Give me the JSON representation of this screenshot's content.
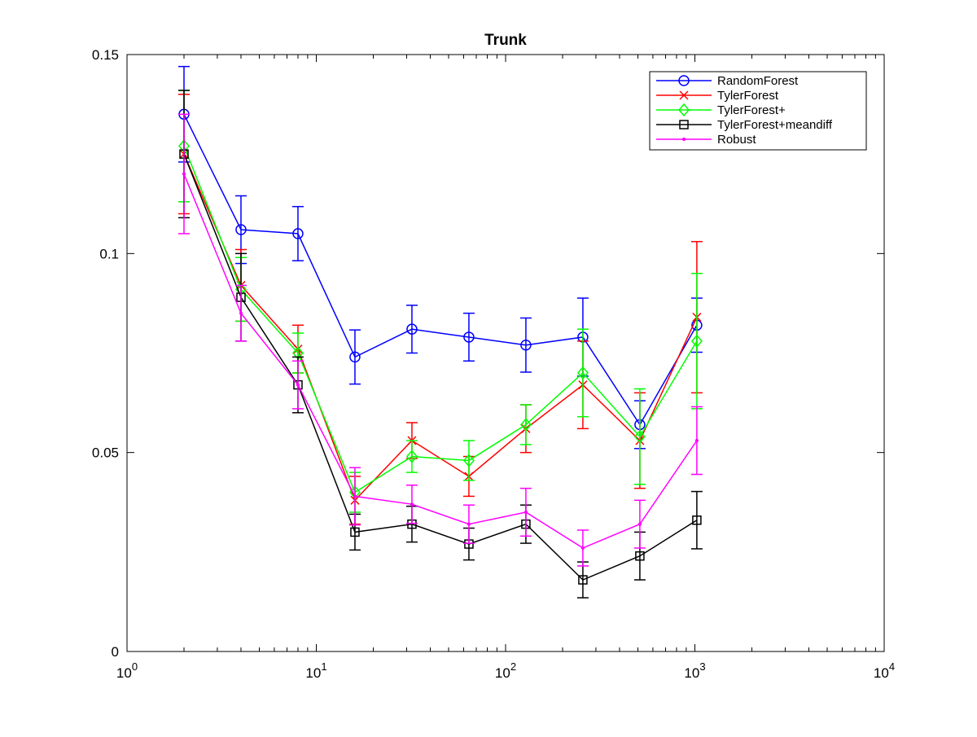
{
  "chart_data": {
    "type": "line",
    "title": "Trunk",
    "xlabel": "",
    "ylabel": "",
    "xscale": "log",
    "xlim": [
      1,
      10000
    ],
    "ylim": [
      0,
      0.15
    ],
    "x_ticks": [
      {
        "value": 1,
        "base": "10",
        "exp": "0"
      },
      {
        "value": 10,
        "base": "10",
        "exp": "1"
      },
      {
        "value": 100,
        "base": "10",
        "exp": "2"
      },
      {
        "value": 1000,
        "base": "10",
        "exp": "3"
      },
      {
        "value": 10000,
        "base": "10",
        "exp": "4"
      }
    ],
    "y_ticks": [
      {
        "value": 0,
        "label": "0"
      },
      {
        "value": 0.05,
        "label": "0.05"
      },
      {
        "value": 0.1,
        "label": "0.1"
      },
      {
        "value": 0.15,
        "label": "0.15"
      }
    ],
    "grid": false,
    "legend_position": "top-right",
    "x": [
      2,
      4,
      8,
      16,
      32,
      64,
      128,
      256,
      512,
      1024
    ],
    "series": [
      {
        "name": "RandomForest",
        "color": "#0000ff",
        "marker": "circle",
        "values": [
          0.135,
          0.106,
          0.105,
          0.074,
          0.081,
          0.079,
          0.077,
          0.079,
          0.057,
          0.082
        ],
        "errors": [
          0.012,
          0.0085,
          0.0068,
          0.0068,
          0.006,
          0.006,
          0.0068,
          0.0098,
          0.006,
          0.0068
        ]
      },
      {
        "name": "TylerForest",
        "color": "#ff0000",
        "marker": "x",
        "values": [
          0.125,
          0.092,
          0.076,
          0.038,
          0.053,
          0.044,
          0.056,
          0.067,
          0.053,
          0.084
        ],
        "errors": [
          0.015,
          0.009,
          0.006,
          0.006,
          0.0045,
          0.005,
          0.006,
          0.011,
          0.012,
          0.019
        ]
      },
      {
        "name": "TylerForest+",
        "color": "#00ff00",
        "marker": "diamond",
        "values": [
          0.127,
          0.091,
          0.075,
          0.04,
          0.049,
          0.048,
          0.057,
          0.07,
          0.054,
          0.078
        ],
        "errors": [
          0.014,
          0.008,
          0.005,
          0.005,
          0.004,
          0.005,
          0.005,
          0.011,
          0.012,
          0.017
        ]
      },
      {
        "name": "TylerForest+meandiff",
        "color": "#000000",
        "marker": "square",
        "values": [
          0.125,
          0.089,
          0.067,
          0.03,
          0.032,
          0.027,
          0.032,
          0.018,
          0.024,
          0.033
        ],
        "errors": [
          0.016,
          0.011,
          0.007,
          0.0045,
          0.0045,
          0.004,
          0.0048,
          0.0045,
          0.006,
          0.0072
        ]
      },
      {
        "name": "Robust",
        "color": "#ff00ff",
        "marker": "dot",
        "values": [
          0.12,
          0.085,
          0.067,
          0.039,
          0.037,
          0.032,
          0.035,
          0.026,
          0.032,
          0.053
        ],
        "errors": [
          0.015,
          0.007,
          0.006,
          0.0072,
          0.0048,
          0.0048,
          0.006,
          0.0045,
          0.006,
          0.0085
        ]
      }
    ]
  }
}
